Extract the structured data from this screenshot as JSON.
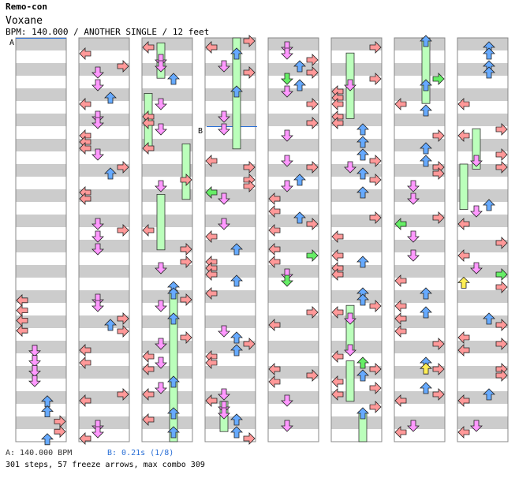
{
  "header": {
    "title": "Remo-con",
    "song": "Voxane",
    "info": "BPM: 140.000 / ANOTHER SINGLE / 12 feet"
  },
  "markers": {
    "a": "A",
    "b": "B"
  },
  "footer": {
    "bpm": "A: 140.000 BPM",
    "stop": "B: 0.21s (1/8)",
    "stats": "301 steps, 57 freeze arrows, max combo 309"
  },
  "colors": {
    "left": "#ff9999",
    "down": "#ff99ff",
    "up": "#66aaff",
    "right": "#ff9999",
    "freeze": "#bbffbb",
    "green_note": "#66ee66",
    "yellow_note": "#ffee55",
    "stripe": "#cccccc",
    "bpm_marker": "#2a6fd6"
  },
  "chart_data": {
    "type": "stepchart",
    "lanes": [
      "left",
      "down",
      "up",
      "right"
    ],
    "columns": 8,
    "measures_per_column": 8,
    "freeze_arrows": [
      {
        "col": 2,
        "lane": 1,
        "from": 0.1,
        "to": 0.8
      },
      {
        "col": 2,
        "lane": 0,
        "from": 1.1,
        "to": 2.2
      },
      {
        "col": 2,
        "lane": 3,
        "from": 2.1,
        "to": 3.2
      },
      {
        "col": 2,
        "lane": 1,
        "from": 3.1,
        "to": 4.2
      },
      {
        "col": 2,
        "lane": 2,
        "from": 5.0,
        "to": 8.0
      },
      {
        "col": 3,
        "lane": 2,
        "from": 0.0,
        "to": 2.2
      },
      {
        "col": 3,
        "lane": 1,
        "from": 7.2,
        "to": 7.8
      },
      {
        "col": 5,
        "lane": 1,
        "from": 0.3,
        "to": 1.6
      },
      {
        "col": 5,
        "lane": 1,
        "from": 5.3,
        "to": 6.2
      },
      {
        "col": 5,
        "lane": 1,
        "from": 6.4,
        "to": 7.2
      },
      {
        "col": 5,
        "lane": 2,
        "from": 7.4,
        "to": 8.0
      },
      {
        "col": 6,
        "lane": 2,
        "from": 0.0,
        "to": 1.3
      },
      {
        "col": 7,
        "lane": 1,
        "from": 1.8,
        "to": 2.6
      },
      {
        "col": 7,
        "lane": 0,
        "from": 2.5,
        "to": 3.4
      }
    ]
  }
}
